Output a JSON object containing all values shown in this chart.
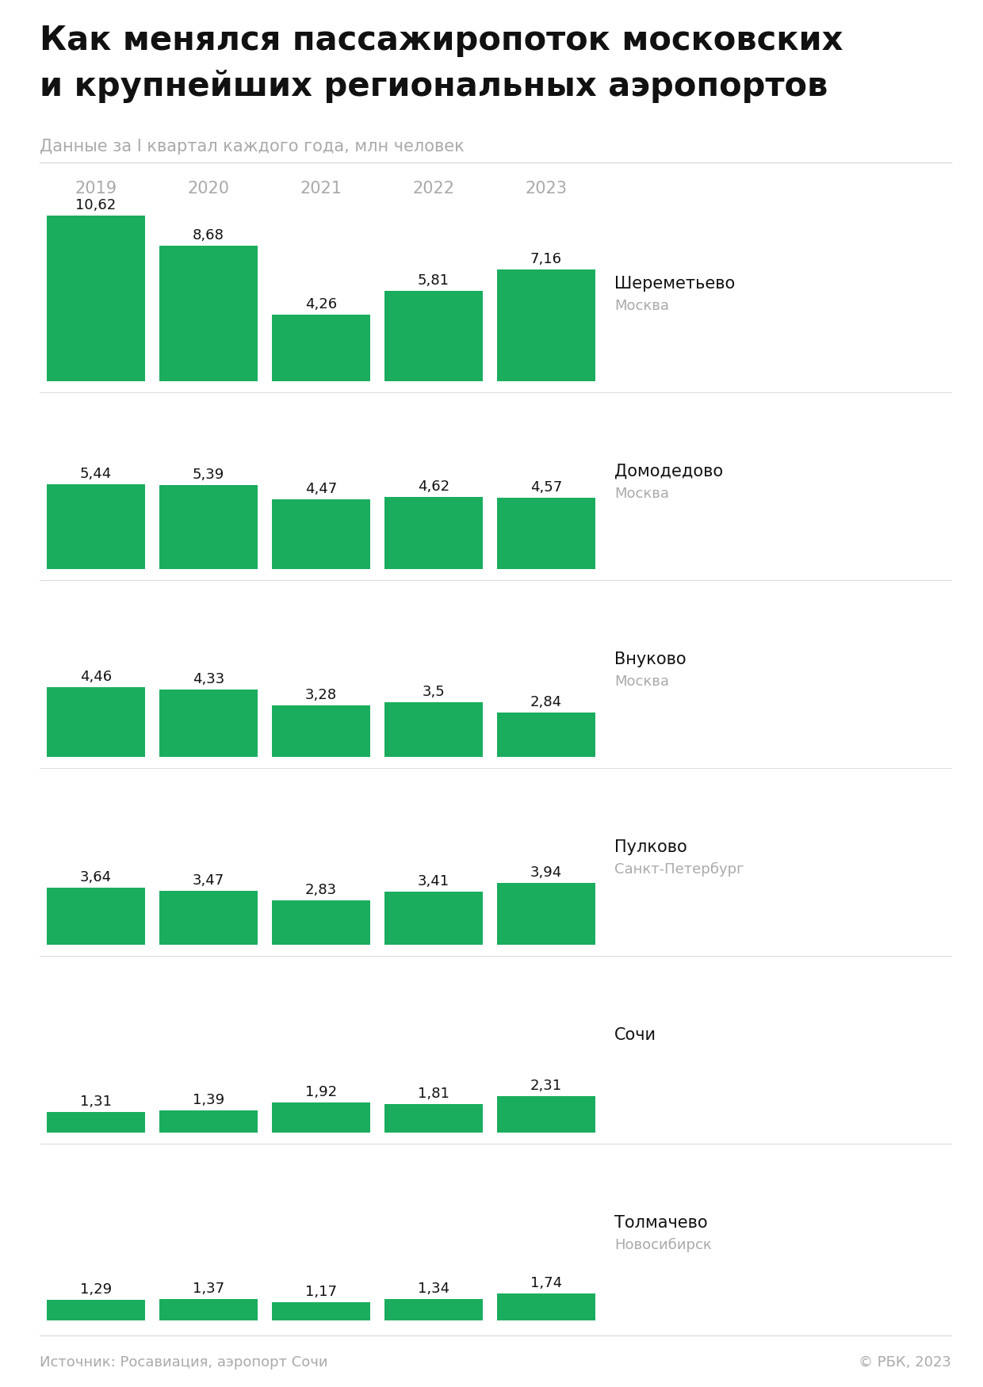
{
  "title_line1": "Как менялся пассажиропоток московских",
  "title_line2": "и крупнейших региональных аэропортов",
  "subtitle": "Данные за I квартал каждого года, млн человек",
  "source": "Источник: Росавиация, аэропорт Сочи",
  "copyright": "© РБК, 2023",
  "years": [
    "2019",
    "2020",
    "2021",
    "2022",
    "2023"
  ],
  "airports": [
    {
      "name": "Шереметьево",
      "city": "Москва",
      "values": [
        10.62,
        8.68,
        4.26,
        5.81,
        7.16
      ]
    },
    {
      "name": "Домодедово",
      "city": "Москва",
      "values": [
        5.44,
        5.39,
        4.47,
        4.62,
        4.57
      ]
    },
    {
      "name": "Внуково",
      "city": "Москва",
      "values": [
        4.46,
        4.33,
        3.28,
        3.5,
        2.84
      ]
    },
    {
      "name": "Пулково",
      "city": "Санкт-Петербург",
      "values": [
        3.64,
        3.47,
        2.83,
        3.41,
        3.94
      ]
    },
    {
      "name": "Сочи",
      "city": "",
      "values": [
        1.31,
        1.39,
        1.92,
        1.81,
        2.31
      ]
    },
    {
      "name": "Толмачево",
      "city": "Новосибирск",
      "values": [
        1.29,
        1.37,
        1.17,
        1.34,
        1.74
      ]
    }
  ],
  "bar_color": "#1aad5e",
  "background_color": "#ffffff",
  "title_color": "#111111",
  "subtitle_color": "#aaaaaa",
  "year_label_color": "#aaaaaa",
  "value_label_color": "#111111",
  "airport_name_color": "#111111",
  "city_color": "#aaaaaa",
  "source_color": "#aaaaaa",
  "separator_color": "#dddddd",
  "max_val": 10.62,
  "title_fontsize": 30,
  "subtitle_fontsize": 15,
  "year_fontsize": 15,
  "value_fontsize": 13,
  "airport_name_fontsize": 15,
  "city_fontsize": 13,
  "source_fontsize": 13
}
